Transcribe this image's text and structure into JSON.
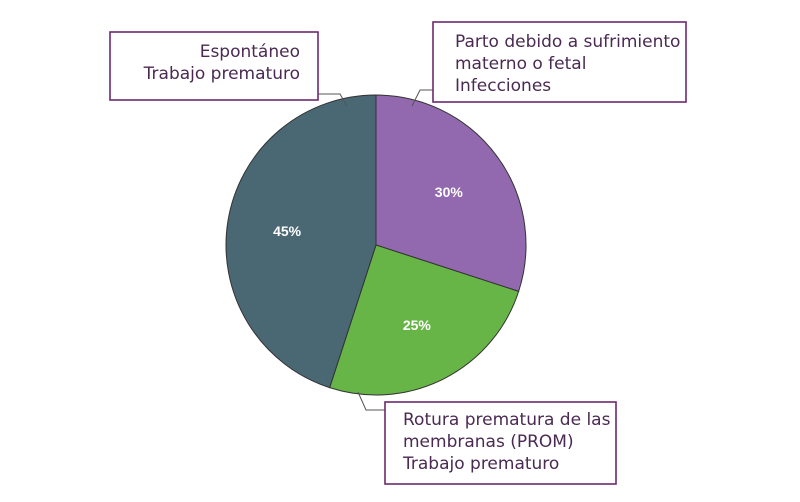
{
  "colors": {
    "border": "#6b2a6e",
    "leader": "#555555",
    "text": "#4a2a52"
  },
  "chart_data": {
    "type": "pie",
    "start_angle_deg": 0,
    "direction": "clockwise",
    "slices": [
      {
        "value": 30,
        "label": "30%",
        "color": "#9268ae"
      },
      {
        "value": 25,
        "label": "25%",
        "color": "#67b547"
      },
      {
        "value": 45,
        "label": "45%",
        "color": "#4a6874"
      }
    ],
    "callouts": [
      {
        "lines": [
          "Parto debido a sufrimiento",
          "materno o fetal",
          "Infecciones"
        ]
      },
      {
        "lines": [
          "Rotura prematura de las",
          "membranas (PROM)",
          "Trabajo prematuro"
        ]
      },
      {
        "lines": [
          "Espontáneo",
          "Trabajo prematuro"
        ]
      }
    ]
  }
}
